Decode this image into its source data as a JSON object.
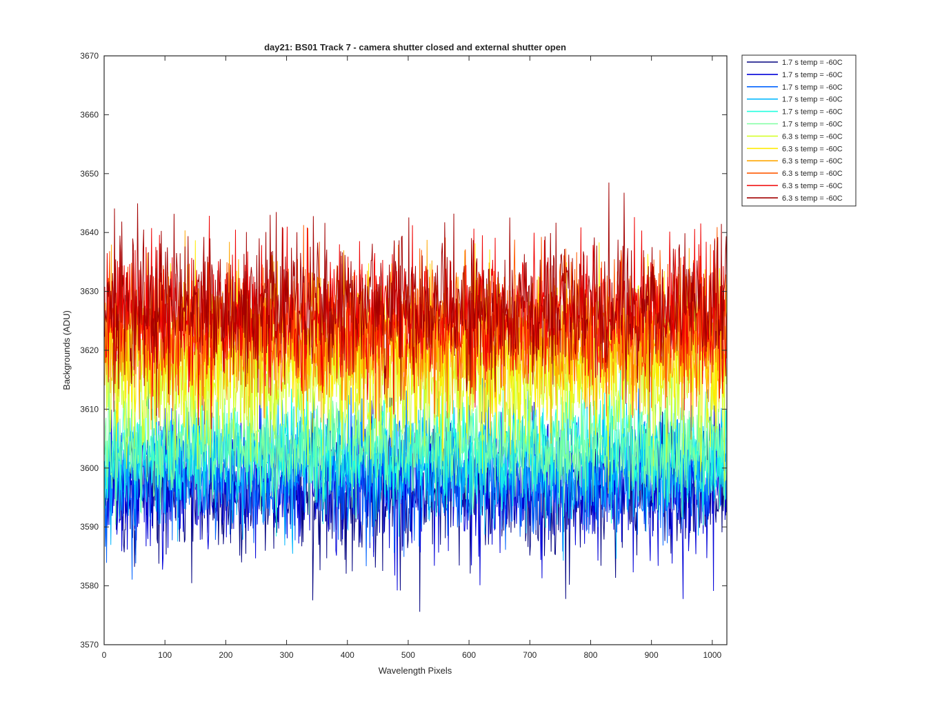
{
  "chart_data": {
    "type": "line",
    "title": "day21: BS01  Track 7 - camera shutter closed and external shutter open",
    "xlabel": "Wavelength Pixels",
    "ylabel": "Backgrounds (ADU)",
    "xlim": [
      0,
      1024
    ],
    "ylim": [
      3570,
      3670
    ],
    "x_ticks": [
      "0",
      "100",
      "200",
      "300",
      "400",
      "500",
      "600",
      "700",
      "800",
      "900",
      "1000"
    ],
    "y_ticks": [
      "3570",
      "3580",
      "3590",
      "3600",
      "3610",
      "3620",
      "3630",
      "3640",
      "3650",
      "3660",
      "3670"
    ],
    "grid": false,
    "legend_position": "outside-top-right",
    "x_range": [
      1,
      1024
    ],
    "series": [
      {
        "name": "1.7 s temp = -60C",
        "color": "#00007f",
        "mean": 3596,
        "spread": 5.5
      },
      {
        "name": "1.7 s temp = -60C",
        "color": "#0000d9",
        "mean": 3597,
        "spread": 5.5
      },
      {
        "name": "1.7 s temp = -60C",
        "color": "#0063ff",
        "mean": 3599,
        "spread": 5.2
      },
      {
        "name": "1.7 s temp = -60C",
        "color": "#00b7ff",
        "mean": 3601,
        "spread": 5
      },
      {
        "name": "1.7 s temp = -60C",
        "color": "#20ffdf",
        "mean": 3603,
        "spread": 4.6
      },
      {
        "name": "1.7 s temp = -60C",
        "color": "#7dffa0",
        "mean": 3604,
        "spread": 4.6
      },
      {
        "name": "6.3 s temp = -60C",
        "color": "#d5ff2a",
        "mean": 3615,
        "spread": 6
      },
      {
        "name": "6.3 s temp = -60C",
        "color": "#ffeb00",
        "mean": 3620,
        "spread": 6
      },
      {
        "name": "6.3 s temp = -60C",
        "color": "#ffa600",
        "mean": 3622,
        "spread": 6
      },
      {
        "name": "6.3 s temp = -60C",
        "color": "#ff5a00",
        "mean": 3624,
        "spread": 6
      },
      {
        "name": "6.3 s temp = -60C",
        "color": "#f00000",
        "mean": 3626,
        "spread": 6
      },
      {
        "name": "6.3 s temp = -60C",
        "color": "#a30000",
        "mean": 3628,
        "spread": 6
      }
    ]
  }
}
